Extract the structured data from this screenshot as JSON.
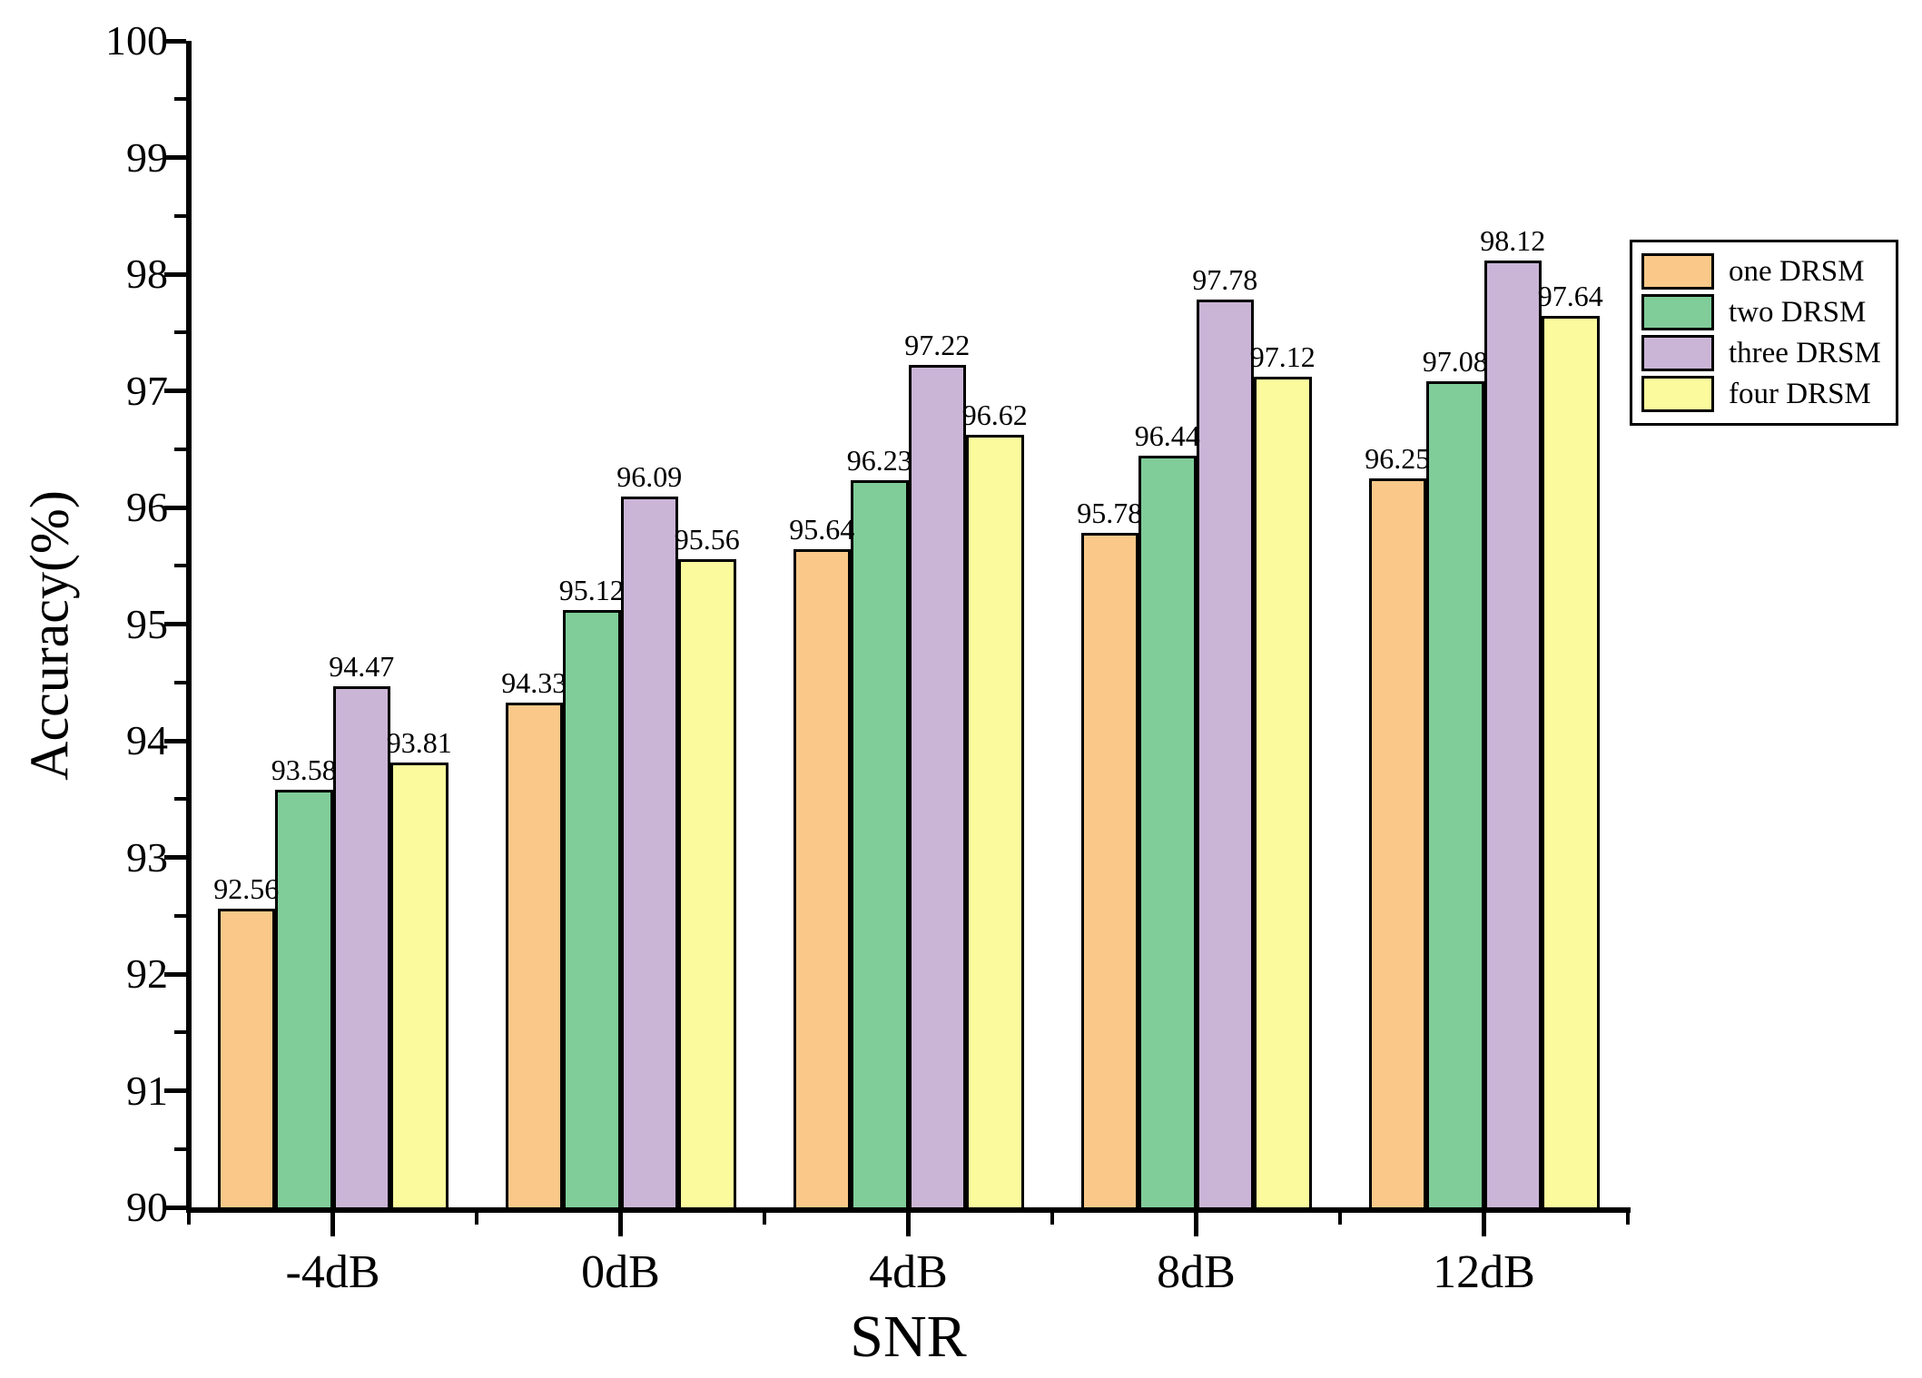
{
  "chart": {
    "y_axis_title": "Accuracy(%)",
    "x_axis_title": "SNR"
  },
  "chart_data": {
    "type": "bar",
    "title": "",
    "xlabel": "SNR",
    "ylabel": "Accuracy(%)",
    "categories": [
      "-4dB",
      "0dB",
      "4dB",
      "8dB",
      "12dB"
    ],
    "series": [
      {
        "name": "one DRSM",
        "color": "#FAC98A",
        "values": [
          92.56,
          94.33,
          95.64,
          95.78,
          96.25
        ]
      },
      {
        "name": "two DRSM",
        "color": "#80CD99",
        "values": [
          93.58,
          95.12,
          96.23,
          96.44,
          97.08
        ]
      },
      {
        "name": "three DRSM",
        "color": "#CBB5D7",
        "values": [
          94.47,
          96.09,
          97.22,
          97.78,
          98.12
        ]
      },
      {
        "name": "four DRSM",
        "color": "#FBFB9E",
        "values": [
          93.81,
          95.56,
          96.62,
          97.12,
          97.64
        ]
      }
    ],
    "ylim": [
      90,
      100
    ],
    "ytick_step": 1,
    "ytick_minor_step": 0.5,
    "ytick_labels": [
      "90",
      "91",
      "92",
      "93",
      "94",
      "95",
      "96",
      "97",
      "98",
      "99",
      "100"
    ],
    "value_labels_shown": true,
    "bar_edge_color": "#000000",
    "grid": false,
    "legend_position": "upper-right-outside",
    "background_color": "#ffffff"
  }
}
